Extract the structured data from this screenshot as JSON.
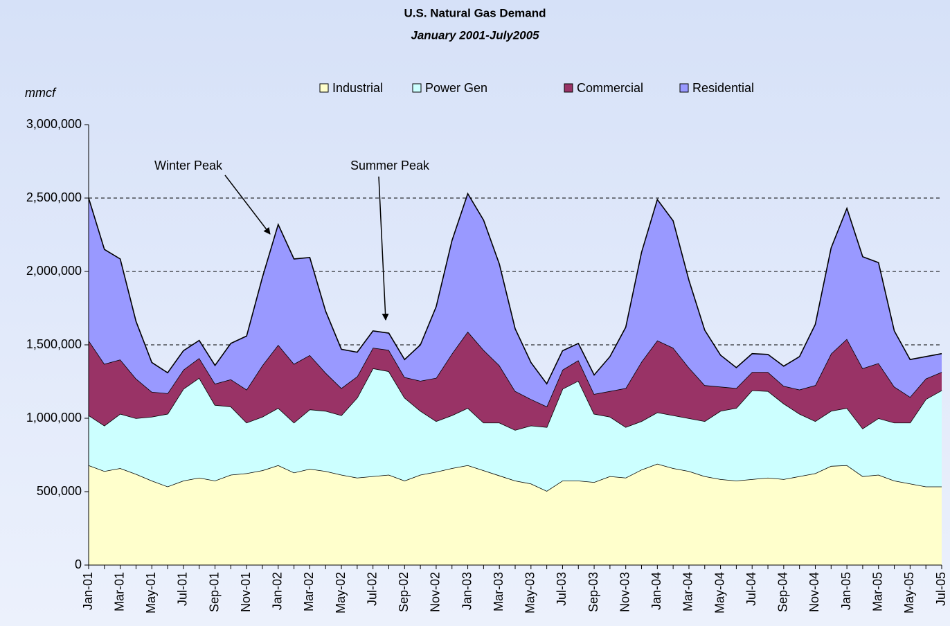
{
  "chart_data": {
    "type": "stacked_area",
    "title": "U.S. Natural Gas Demand",
    "subtitle": "January 2001-July2005",
    "y_label": "mmcf",
    "annotations": [
      {
        "text": "Winter Peak"
      },
      {
        "text": "Summer Peak"
      }
    ],
    "categories": [
      "Jan-01",
      null,
      "Mar-01",
      null,
      "May-01",
      null,
      "Jul-01",
      null,
      "Sep-01",
      null,
      "Nov-01",
      null,
      "Jan-02",
      null,
      "Mar-02",
      null,
      "May-02",
      null,
      "Jul-02",
      null,
      "Sep-02",
      null,
      "Nov-02",
      null,
      "Jan-03",
      null,
      "Mar-03",
      null,
      "May-03",
      null,
      "Jul-03",
      null,
      "Sep-03",
      null,
      "Nov-03",
      null,
      "Jan-04",
      null,
      "Mar-04",
      null,
      "May-04",
      null,
      "Jul-04",
      null,
      "Sep-04",
      null,
      "Nov-04",
      null,
      "Jan-05",
      null,
      "Mar-05",
      null,
      "May-05",
      null,
      "Jul-05"
    ],
    "series": [
      {
        "name": "Industrial",
        "color": "#ffffcc",
        "values": [
          680000,
          640000,
          660000,
          620000,
          575000,
          535000,
          575000,
          595000,
          575000,
          615000,
          625000,
          645000,
          680000,
          630000,
          655000,
          640000,
          615000,
          595000,
          605000,
          615000,
          575000,
          615000,
          635000,
          660000,
          680000,
          645000,
          610000,
          575000,
          555000,
          505000,
          575000,
          575000,
          565000,
          605000,
          595000,
          650000,
          690000,
          660000,
          640000,
          605000,
          585000,
          575000,
          585000,
          595000,
          585000,
          605000,
          625000,
          675000,
          680000,
          605000,
          615000,
          575000,
          555000,
          535000,
          535000
        ]
      },
      {
        "name": "Power Gen",
        "color": "#ccffff",
        "values": [
          340000,
          310000,
          370000,
          380000,
          435000,
          495000,
          625000,
          680000,
          515000,
          465000,
          345000,
          365000,
          390000,
          340000,
          405000,
          410000,
          405000,
          545000,
          735000,
          705000,
          565000,
          435000,
          345000,
          360000,
          390000,
          325000,
          360000,
          345000,
          395000,
          435000,
          625000,
          680000,
          465000,
          405000,
          345000,
          330000,
          350000,
          360000,
          360000,
          375000,
          465000,
          495000,
          605000,
          590000,
          515000,
          425000,
          355000,
          375000,
          390000,
          325000,
          385000,
          395000,
          415000,
          595000,
          655000
        ]
      },
      {
        "name": "Commercial",
        "color": "#993366",
        "values": [
          510000,
          420000,
          370000,
          270000,
          170000,
          140000,
          130000,
          135000,
          145000,
          185000,
          225000,
          350000,
          430000,
          400000,
          370000,
          260000,
          185000,
          145000,
          140000,
          145000,
          140000,
          205000,
          295000,
          420000,
          520000,
          495000,
          390000,
          265000,
          180000,
          140000,
          130000,
          140000,
          135000,
          175000,
          265000,
          405000,
          490000,
          460000,
          345000,
          245000,
          165000,
          135000,
          125000,
          130000,
          120000,
          165000,
          245000,
          390000,
          470000,
          410000,
          375000,
          245000,
          175000,
          140000,
          125000
        ]
      },
      {
        "name": "Residential",
        "color": "#9999ff",
        "values": [
          970000,
          780000,
          685000,
          390000,
          200000,
          140000,
          130000,
          120000,
          125000,
          245000,
          365000,
          600000,
          820000,
          715000,
          665000,
          420000,
          265000,
          165000,
          115000,
          115000,
          120000,
          245000,
          485000,
          770000,
          940000,
          885000,
          690000,
          425000,
          250000,
          155000,
          130000,
          115000,
          130000,
          235000,
          415000,
          745000,
          960000,
          865000,
          595000,
          375000,
          215000,
          140000,
          125000,
          120000,
          135000,
          225000,
          415000,
          720000,
          890000,
          760000,
          685000,
          380000,
          255000,
          150000,
          125000
        ]
      }
    ],
    "ylim": [
      0,
      3000000
    ],
    "yticks": [
      0,
      {
        "value": 500000,
        "label": "500,000"
      },
      {
        "value": 1000000,
        "label": "1,000,000"
      },
      {
        "value": 1500000,
        "label": "1,500,000"
      },
      {
        "value": 2000000,
        "label": "2,000,000"
      },
      {
        "value": 2500000,
        "label": "2,500,000"
      },
      {
        "value": 3000000,
        "label": "3,000,000"
      }
    ],
    "grid": true,
    "legend": "top"
  }
}
